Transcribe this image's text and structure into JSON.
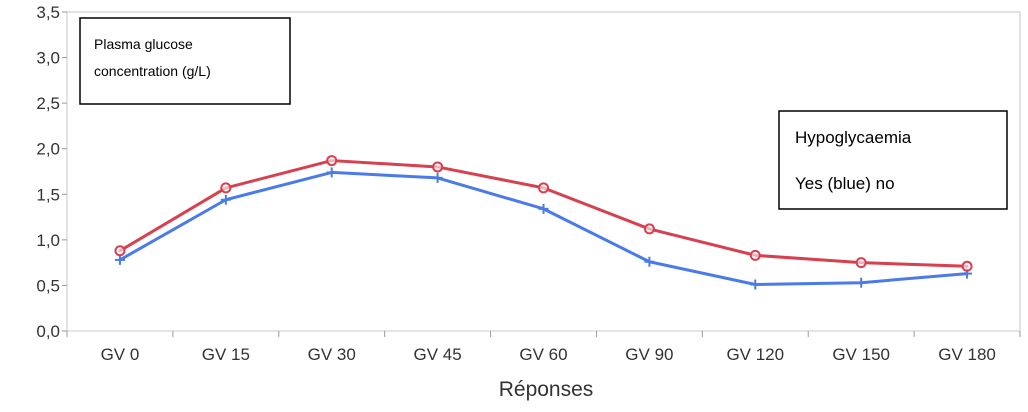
{
  "chart_data": {
    "type": "line",
    "categories": [
      "GV 0",
      "GV 15",
      "GV 30",
      "GV 45",
      "GV 60",
      "GV 90",
      "GV 120",
      "GV 150",
      "GV 180"
    ],
    "series": [
      {
        "values": [
          0.78,
          1.44,
          1.74,
          1.68,
          1.34,
          0.76,
          0.51,
          0.53,
          0.63
        ],
        "color": "#4a7be8",
        "marker": "plus"
      },
      {
        "values": [
          0.88,
          1.57,
          1.87,
          1.8,
          1.57,
          1.12,
          0.83,
          0.75,
          0.71
        ],
        "color": "#d6404f",
        "marker": "circle"
      }
    ],
    "y_ticks": [
      "0,0",
      "0,5",
      "1,0",
      "1,5",
      "2,0",
      "2,5",
      "3,0",
      "3,5"
    ],
    "ylim": [
      0,
      3.5
    ],
    "xlabel": "Réponses",
    "annotation_left": {
      "line1": "Plasma glucose",
      "line2": "concentration (g/L)"
    },
    "annotation_right": {
      "line1": "Hypoglycaemia",
      "line2": "Yes (blue) no"
    },
    "grid": false
  }
}
